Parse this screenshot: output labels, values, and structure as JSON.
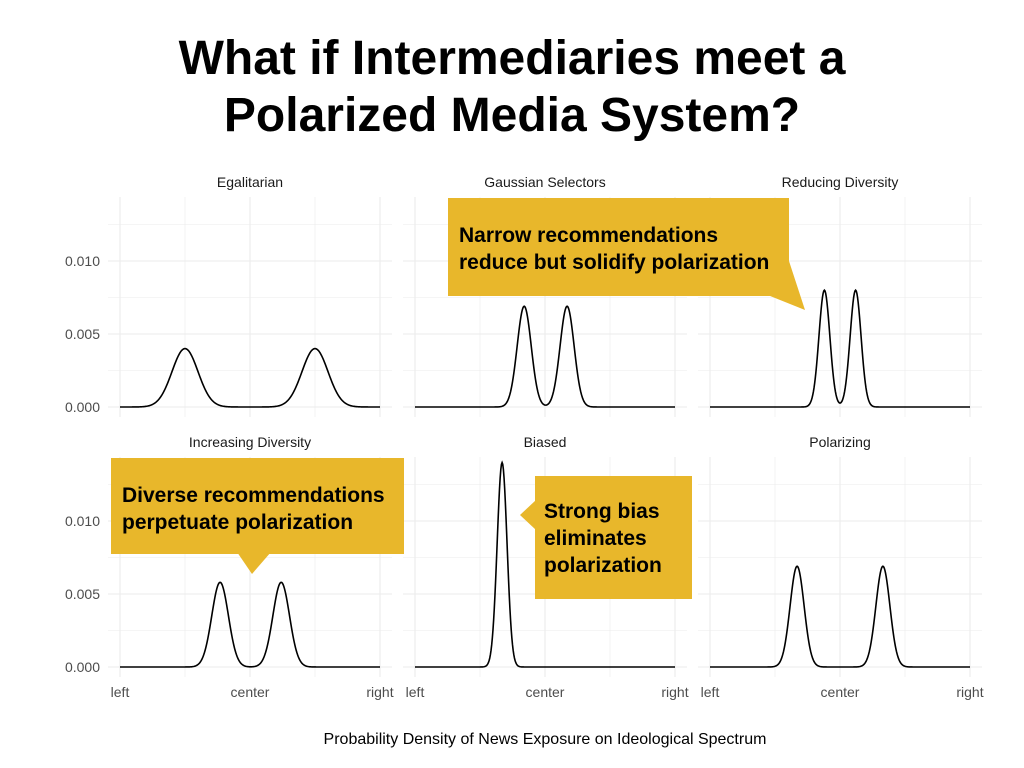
{
  "title": {
    "line1": "What if Intermediaries meet a",
    "line2": "Polarized Media System?"
  },
  "chart_data": {
    "type": "line",
    "xlabel": "Probability Density of News Exposure on Ideological Spectrum",
    "ylabel": "",
    "xlim": [
      0,
      1
    ],
    "ylim": [
      -0.0005,
      0.0145
    ],
    "x_ticks": [
      {
        "value": 0,
        "label": "left"
      },
      {
        "value": 0.5,
        "label": "center"
      },
      {
        "value": 1,
        "label": "right"
      }
    ],
    "y_ticks": [
      {
        "value": 0,
        "label": "0.000"
      },
      {
        "value": 0.005,
        "label": "0.005"
      },
      {
        "value": 0.01,
        "label": "0.010"
      }
    ],
    "grid": true,
    "panels": [
      {
        "title": "Egalitarian",
        "peaks": [
          {
            "x": 0.25,
            "y": 0.004,
            "sd": 0.05
          },
          {
            "x": 0.75,
            "y": 0.004,
            "sd": 0.05
          }
        ]
      },
      {
        "title": "Gaussian Selectors",
        "peaks": [
          {
            "x": 0.42,
            "y": 0.0069,
            "sd": 0.027
          },
          {
            "x": 0.585,
            "y": 0.0069,
            "sd": 0.027
          }
        ]
      },
      {
        "title": "Reducing Diversity",
        "peaks": [
          {
            "x": 0.44,
            "y": 0.008,
            "sd": 0.021
          },
          {
            "x": 0.56,
            "y": 0.008,
            "sd": 0.021
          }
        ]
      },
      {
        "title": "Increasing Diversity",
        "peaks": [
          {
            "x": 0.385,
            "y": 0.0058,
            "sd": 0.032
          },
          {
            "x": 0.62,
            "y": 0.0058,
            "sd": 0.032
          }
        ]
      },
      {
        "title": "Biased",
        "peaks": [
          {
            "x": 0.335,
            "y": 0.014,
            "sd": 0.019
          }
        ]
      },
      {
        "title": "Polarizing",
        "peaks": [
          {
            "x": 0.335,
            "y": 0.0069,
            "sd": 0.027
          },
          {
            "x": 0.665,
            "y": 0.0069,
            "sd": 0.027
          }
        ]
      }
    ]
  },
  "callouts": [
    {
      "line1": "Narrow recommendations",
      "line2": "reduce but solidify polarization"
    },
    {
      "line1": "Diverse recommendations",
      "line2": "perpetuate polarization"
    },
    {
      "line1": "Strong bias",
      "line2": "eliminates",
      "line3": "polarization"
    }
  ],
  "colors": {
    "callout": "#E8B72B",
    "curve": "#000000",
    "grid": "#EBEBEB",
    "axis_text": "#4D4D4D"
  }
}
